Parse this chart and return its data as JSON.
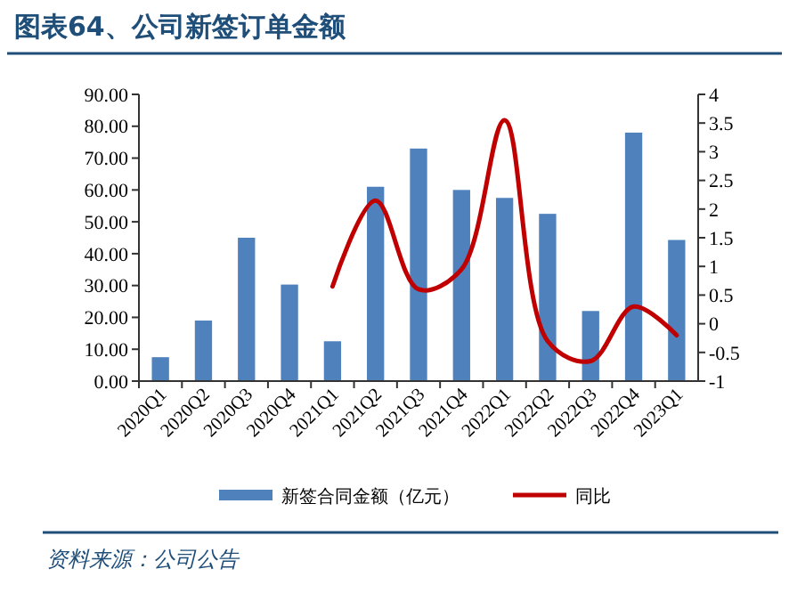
{
  "chart_data": {
    "type": "bar",
    "title": "图表64、公司新签订单金额",
    "annotations": [
      "资料来源：公司公告"
    ],
    "categories": [
      "2020Q1",
      "2020Q2",
      "2020Q3",
      "2020Q4",
      "2021Q1",
      "2021Q2",
      "2021Q3",
      "2021Q4",
      "2022Q1",
      "2022Q2",
      "2022Q3",
      "2022Q4",
      "2023Q1"
    ],
    "series": [
      {
        "name": "新签合同金额（亿元）",
        "color": "#4f81bd",
        "values": [
          7.5,
          19,
          45,
          30.3,
          12.5,
          61,
          73,
          60,
          57.5,
          52.5,
          22,
          78,
          44.3
        ]
      },
      {
        "name": "同比",
        "type": "line",
        "axis": "y2",
        "color": "#c00000",
        "values": [
          null,
          null,
          null,
          null,
          0.65,
          2.15,
          0.6,
          0.95,
          3.55,
          -0.3,
          -0.65,
          0.3,
          -0.2
        ]
      }
    ],
    "ylim": [
      0,
      90
    ],
    "yticks": [
      {
        "value": 0,
        "label": "0.00"
      },
      {
        "value": 10,
        "label": "10.00"
      },
      {
        "value": 20,
        "label": "20.00"
      },
      {
        "value": 30,
        "label": "30.00"
      },
      {
        "value": 40,
        "label": "40.00"
      },
      {
        "value": 50,
        "label": "50.00"
      },
      {
        "value": 60,
        "label": "60.00"
      },
      {
        "value": 70,
        "label": "70.00"
      },
      {
        "value": 80,
        "label": "80.00"
      },
      {
        "value": 90,
        "label": "90.00"
      }
    ],
    "y2lim": [
      -1,
      4
    ],
    "y2ticks": [
      -1,
      -0.5,
      0,
      0.5,
      1,
      1.5,
      2,
      2.5,
      3,
      3.5,
      4
    ],
    "legend": "bottom",
    "grid": false
  }
}
